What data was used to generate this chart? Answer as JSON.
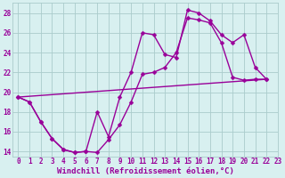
{
  "background_color": "#d8f0f0",
  "grid_color": "#aacccc",
  "line_color": "#990099",
  "marker": "D",
  "markersize": 2.5,
  "linewidth": 1.0,
  "xlim": [
    -0.5,
    23
  ],
  "ylim": [
    13.5,
    29
  ],
  "yticks": [
    14,
    16,
    18,
    20,
    22,
    24,
    26,
    28
  ],
  "xticks": [
    0,
    1,
    2,
    3,
    4,
    5,
    6,
    7,
    8,
    9,
    10,
    11,
    12,
    13,
    14,
    15,
    16,
    17,
    18,
    19,
    20,
    21,
    22,
    23
  ],
  "xlabel": "Windchill (Refroidissement éolien,°C)",
  "xlabel_fontsize": 6.5,
  "tick_fontsize": 5.5,
  "line1_x": [
    0,
    1,
    2,
    3,
    4,
    5,
    6,
    7,
    8,
    9,
    10,
    11,
    12,
    13,
    14,
    15,
    16,
    17,
    18,
    19,
    20,
    21,
    22
  ],
  "line1_y": [
    19.5,
    19.0,
    17.0,
    15.3,
    14.2,
    13.9,
    14.0,
    18.0,
    15.5,
    19.5,
    22.0,
    26.0,
    25.8,
    23.8,
    23.5,
    28.3,
    28.0,
    27.2,
    25.8,
    25.0,
    25.8,
    22.5,
    21.3
  ],
  "line2_x": [
    0,
    1,
    2,
    3,
    4,
    5,
    6,
    7,
    8,
    9,
    10,
    11,
    12,
    13,
    14,
    15,
    16,
    17,
    18,
    19,
    20,
    21,
    22
  ],
  "line2_y": [
    19.5,
    19.0,
    17.0,
    15.3,
    14.2,
    13.9,
    14.0,
    13.9,
    15.2,
    16.7,
    19.0,
    21.8,
    22.0,
    22.5,
    24.0,
    27.5,
    27.3,
    27.0,
    25.0,
    21.5,
    21.2,
    21.3,
    21.3
  ],
  "line3_x": [
    0,
    22
  ],
  "line3_y": [
    19.5,
    21.3
  ]
}
